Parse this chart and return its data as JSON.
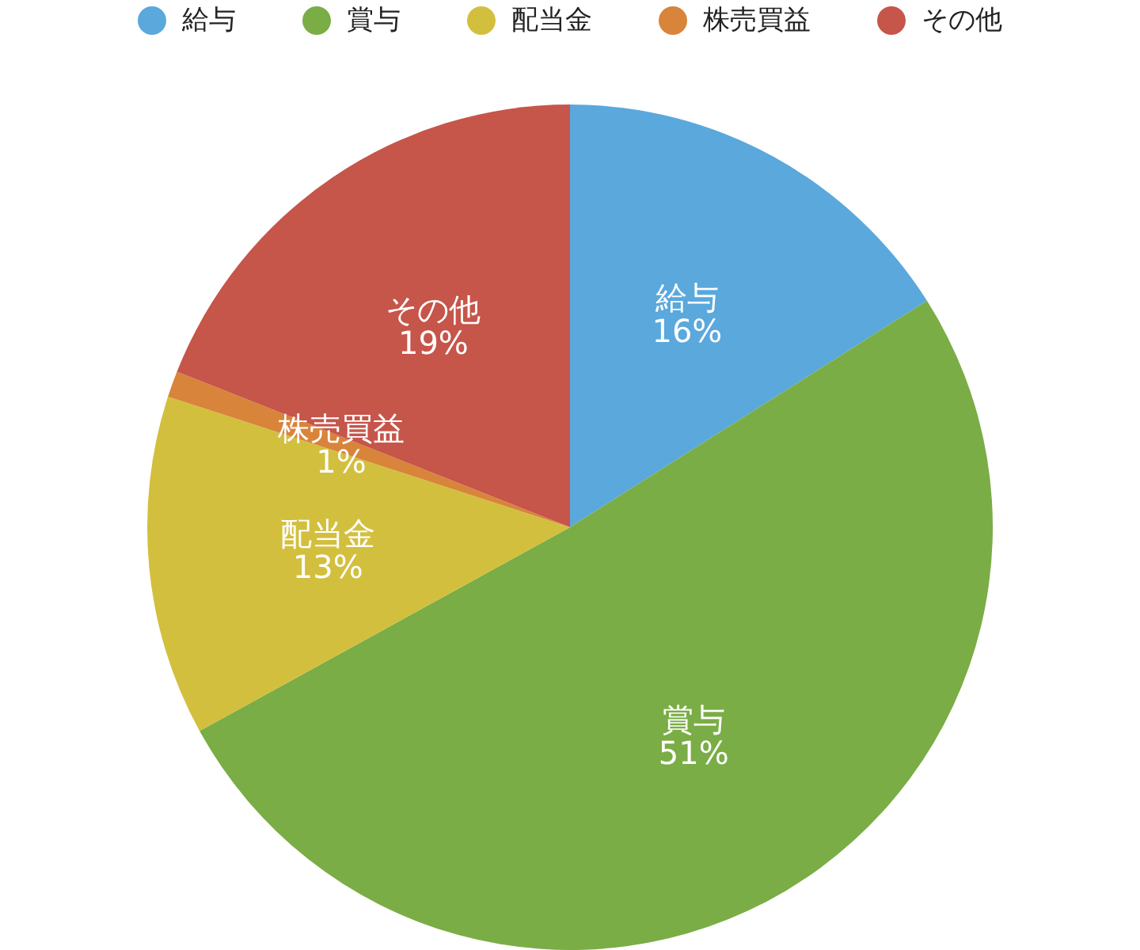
{
  "chart_data": {
    "type": "pie",
    "categories": [
      "給与",
      "賞与",
      "配当金",
      "株売買益",
      "その他"
    ],
    "values": [
      16,
      51,
      13,
      1,
      19
    ],
    "colors": [
      "#5aa8dc",
      "#7aad45",
      "#d3bf3e",
      "#d8843a",
      "#c6554a"
    ],
    "value_labels": [
      "16%",
      "51%",
      "13%",
      "1%",
      "19%"
    ],
    "legend": "top"
  }
}
